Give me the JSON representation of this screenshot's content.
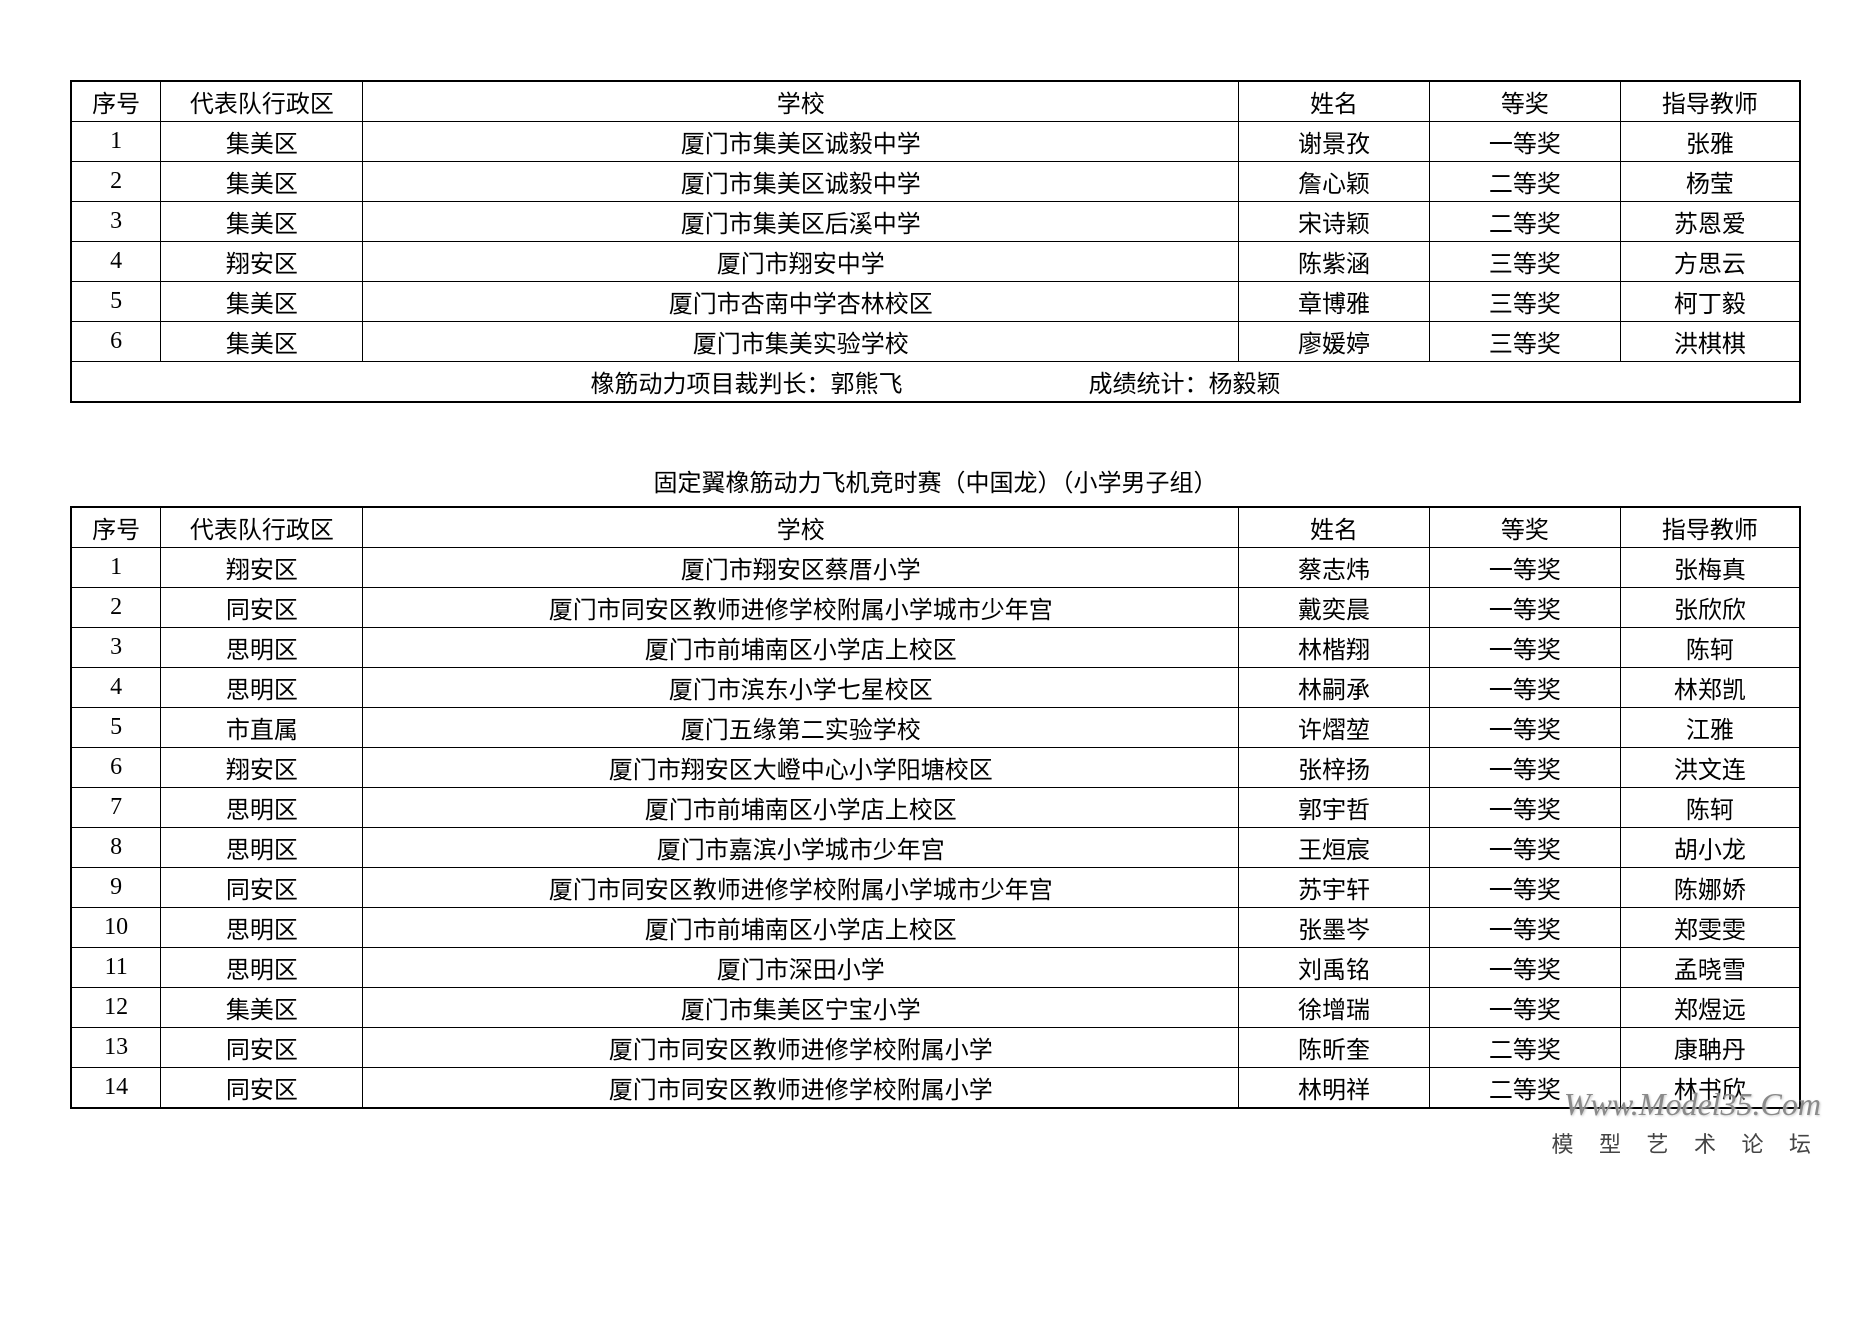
{
  "table1": {
    "headers": {
      "num": "序号",
      "district": "代表队行政区",
      "school": "学校",
      "name": "姓名",
      "award": "等奖",
      "teacher": "指导教师"
    },
    "rows": [
      {
        "num": "1",
        "district": "集美区",
        "school": "厦门市集美区诚毅中学",
        "name": "谢景孜",
        "award": "一等奖",
        "teacher": "张雅"
      },
      {
        "num": "2",
        "district": "集美区",
        "school": "厦门市集美区诚毅中学",
        "name": "詹心颖",
        "award": "二等奖",
        "teacher": "杨莹"
      },
      {
        "num": "3",
        "district": "集美区",
        "school": "厦门市集美区后溪中学",
        "name": "宋诗颖",
        "award": "二等奖",
        "teacher": "苏恩爱"
      },
      {
        "num": "4",
        "district": "翔安区",
        "school": "厦门市翔安中学",
        "name": "陈紫涵",
        "award": "三等奖",
        "teacher": "方思云"
      },
      {
        "num": "5",
        "district": "集美区",
        "school": "厦门市杏南中学杏林校区",
        "name": "章博雅",
        "award": "三等奖",
        "teacher": "柯丁毅"
      },
      {
        "num": "6",
        "district": "集美区",
        "school": "厦门市集美实验学校",
        "name": "廖媛婷",
        "award": "三等奖",
        "teacher": "洪棋棋"
      }
    ],
    "footer": {
      "part1": "橡筋动力项目裁判长：郭熊飞",
      "part2": "成绩统计：杨毅颖"
    }
  },
  "table2": {
    "title": "固定翼橡筋动力飞机竞时赛（中国龙）（小学男子组）",
    "headers": {
      "num": "序号",
      "district": "代表队行政区",
      "school": "学校",
      "name": "姓名",
      "award": "等奖",
      "teacher": "指导教师"
    },
    "rows": [
      {
        "num": "1",
        "district": "翔安区",
        "school": "厦门市翔安区蔡厝小学",
        "name": "蔡志炜",
        "award": "一等奖",
        "teacher": "张梅真"
      },
      {
        "num": "2",
        "district": "同安区",
        "school": "厦门市同安区教师进修学校附属小学城市少年宫",
        "name": "戴奕晨",
        "award": "一等奖",
        "teacher": "张欣欣"
      },
      {
        "num": "3",
        "district": "思明区",
        "school": "厦门市前埔南区小学店上校区",
        "name": "林楷翔",
        "award": "一等奖",
        "teacher": "陈轲"
      },
      {
        "num": "4",
        "district": "思明区",
        "school": "厦门市滨东小学七星校区",
        "name": "林嗣承",
        "award": "一等奖",
        "teacher": "林郑凯"
      },
      {
        "num": "5",
        "district": "市直属",
        "school": "厦门五缘第二实验学校",
        "name": "许熠堃",
        "award": "一等奖",
        "teacher": "江雅"
      },
      {
        "num": "6",
        "district": "翔安区",
        "school": "厦门市翔安区大嶝中心小学阳塘校区",
        "name": "张梓扬",
        "award": "一等奖",
        "teacher": "洪文连"
      },
      {
        "num": "7",
        "district": "思明区",
        "school": "厦门市前埔南区小学店上校区",
        "name": "郭宇哲",
        "award": "一等奖",
        "teacher": "陈轲"
      },
      {
        "num": "8",
        "district": "思明区",
        "school": "厦门市嘉滨小学城市少年宫",
        "name": "王烜宸",
        "award": "一等奖",
        "teacher": "胡小龙"
      },
      {
        "num": "9",
        "district": "同安区",
        "school": "厦门市同安区教师进修学校附属小学城市少年宫",
        "name": "苏宇轩",
        "award": "一等奖",
        "teacher": "陈娜娇"
      },
      {
        "num": "10",
        "district": "思明区",
        "school": "厦门市前埔南区小学店上校区",
        "name": "张墨岑",
        "award": "一等奖",
        "teacher": "郑雯雯"
      },
      {
        "num": "11",
        "district": "思明区",
        "school": "厦门市深田小学",
        "name": "刘禹铭",
        "award": "一等奖",
        "teacher": "孟晓雪"
      },
      {
        "num": "12",
        "district": "集美区",
        "school": "厦门市集美区宁宝小学",
        "name": "徐增瑞",
        "award": "一等奖",
        "teacher": "郑煜远"
      },
      {
        "num": "13",
        "district": "同安区",
        "school": "厦门市同安区教师进修学校附属小学",
        "name": "陈昕奎",
        "award": "二等奖",
        "teacher": "康聃丹"
      },
      {
        "num": "14",
        "district": "同安区",
        "school": "厦门市同安区教师进修学校附属小学",
        "name": "林明祥",
        "award": "二等奖",
        "teacher": "林书欣"
      }
    ]
  },
  "watermark": {
    "url": "Www.Model35.Com",
    "text": "模 型 艺 术 论 坛"
  }
}
